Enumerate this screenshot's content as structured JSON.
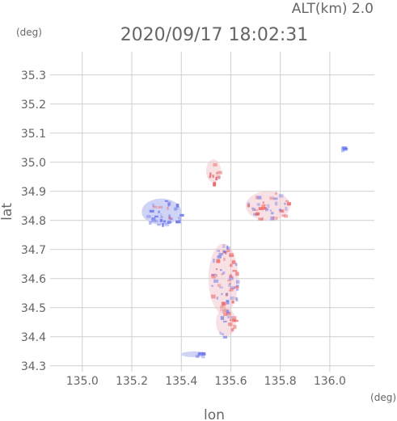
{
  "chart_data": {
    "type": "heatmap",
    "title": "2020/09/17 18:02:31",
    "subtitle": "ALT(km) 2.0",
    "xlabel": "lon",
    "ylabel": "lat",
    "x_unit": "(deg)",
    "y_unit": "(deg)",
    "xlim": [
      134.87,
      136.18
    ],
    "ylim": [
      34.28,
      35.38
    ],
    "x_ticks": [
      "135.0",
      "135.2",
      "135.4",
      "135.6",
      "135.8",
      "136.0"
    ],
    "y_ticks": [
      "34.3",
      "34.4",
      "34.5",
      "34.6",
      "34.7",
      "34.8",
      "34.9",
      "35.0",
      "35.1",
      "35.2",
      "35.3"
    ],
    "grid": true,
    "legend": "none",
    "colors": {
      "negative": "#7a82ee",
      "positive": "#ec6b6b",
      "neutral": "#d8dcf5"
    },
    "regions": [
      {
        "name": "",
        "lon": 135.32,
        "lat": 34.83,
        "rx": 0.08,
        "ry": 0.045,
        "value": -0.5
      },
      {
        "name": "",
        "lon": 135.53,
        "lat": 34.97,
        "rx": 0.03,
        "ry": 0.04,
        "value": 0.4
      },
      {
        "name": "",
        "lon": 135.75,
        "lat": 34.85,
        "rx": 0.09,
        "ry": 0.05,
        "value": 0.2
      },
      {
        "name": "",
        "lon": 135.57,
        "lat": 34.6,
        "rx": 0.06,
        "ry": 0.12,
        "value": 0.1
      },
      {
        "name": "",
        "lon": 135.58,
        "lat": 34.45,
        "rx": 0.04,
        "ry": 0.05,
        "value": -0.1
      },
      {
        "name": "",
        "lon": 135.45,
        "lat": 34.34,
        "rx": 0.05,
        "ry": 0.01,
        "value": -0.4
      },
      {
        "name": "",
        "lon": 136.05,
        "lat": 35.05,
        "rx": 0.005,
        "ry": 0.005,
        "value": -0.8
      }
    ]
  }
}
